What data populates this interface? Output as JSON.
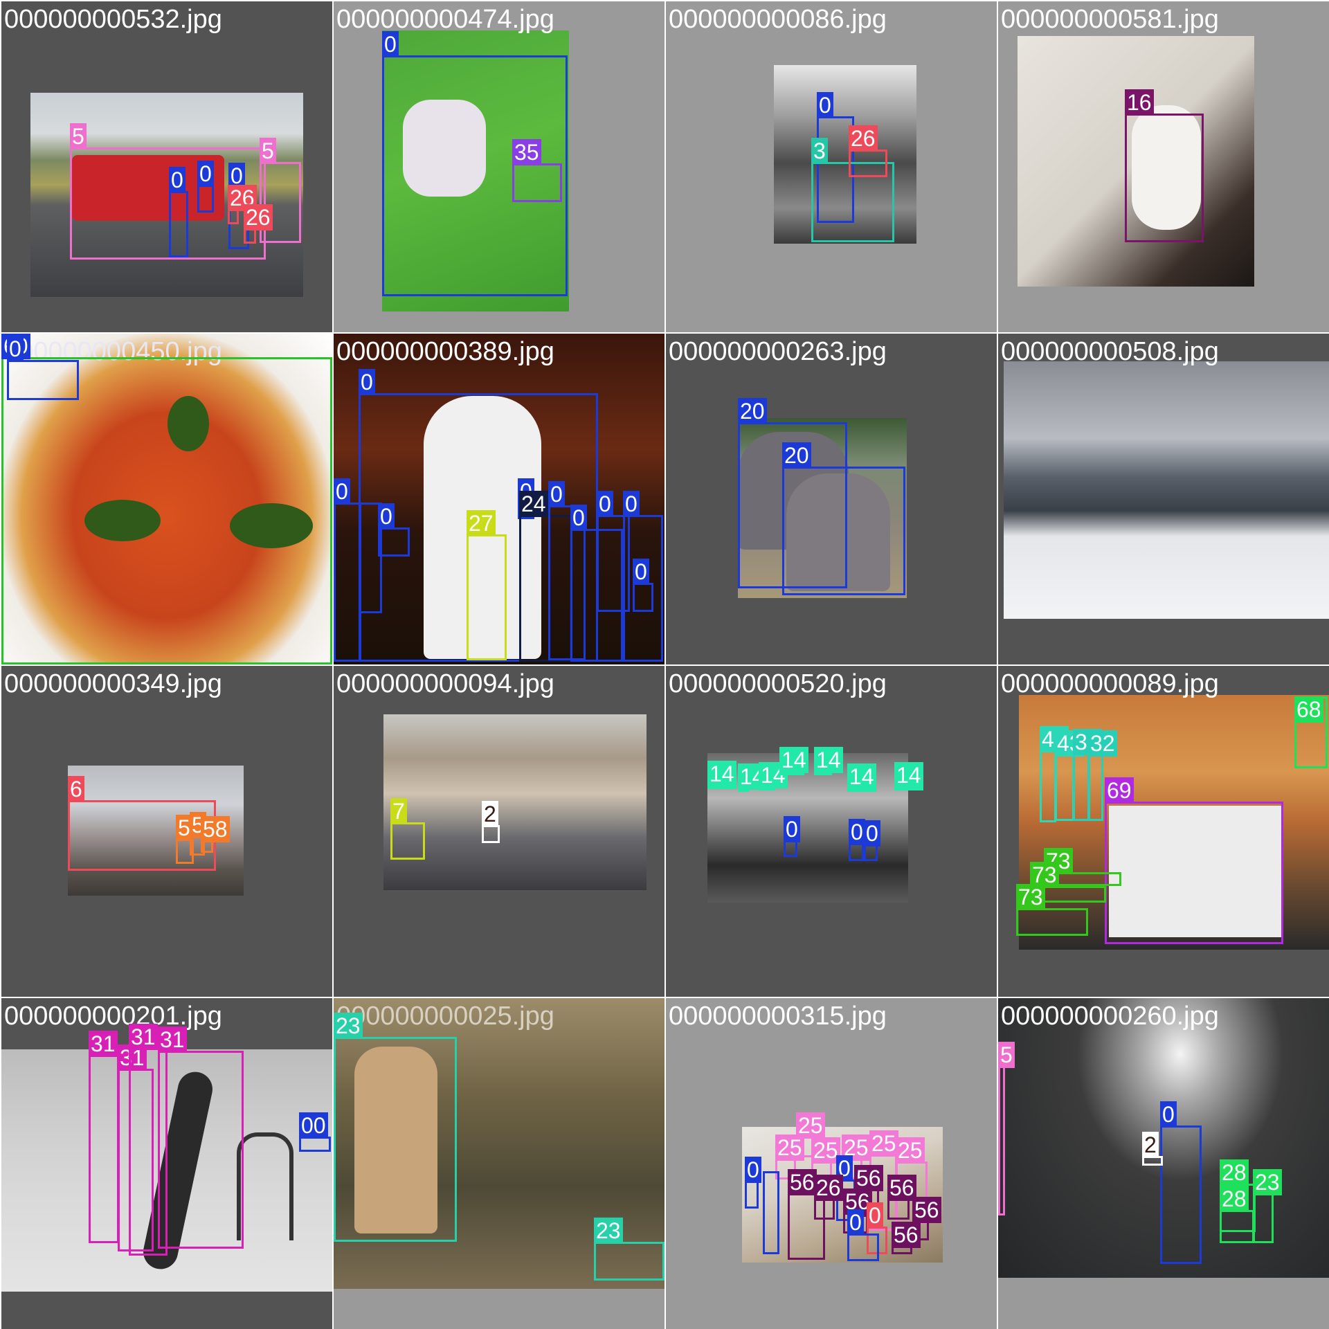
{
  "mosaic": {
    "tiles": [
      {
        "filename": "000000000532.jpg",
        "bg": "#535353",
        "labels": [
          "5",
          "5",
          "0",
          "0",
          "0",
          "26",
          "26"
        ]
      },
      {
        "filename": "000000000474.jpg",
        "bg": "#9a9a9a",
        "labels": [
          "0",
          "35"
        ]
      },
      {
        "filename": "000000000086.jpg",
        "bg": "#9a9a9a",
        "labels": [
          "0",
          "3",
          "26"
        ]
      },
      {
        "filename": "000000000581.jpg",
        "bg": "#9a9a9a",
        "labels": [
          "16"
        ]
      },
      {
        "filename": "000000000450.jpg",
        "bg": "#ffffff",
        "labels": [
          "60",
          "0"
        ]
      },
      {
        "filename": "000000000389.jpg",
        "bg": "#ffffff",
        "labels": [
          "0",
          "0",
          "0",
          "0",
          "24",
          "0",
          "0",
          "0",
          "0",
          "0",
          "27"
        ]
      },
      {
        "filename": "000000000263.jpg",
        "bg": "#535353",
        "labels": [
          "20",
          "20"
        ]
      },
      {
        "filename": "000000000508.jpg",
        "bg": "#535353",
        "labels": []
      },
      {
        "filename": "000000000349.jpg",
        "bg": "#535353",
        "labels": [
          "6",
          "5",
          "5",
          "58"
        ]
      },
      {
        "filename": "000000000094.jpg",
        "bg": "#535353",
        "labels": [
          "7",
          "2"
        ]
      },
      {
        "filename": "000000000520.jpg",
        "bg": "#535353",
        "labels": [
          "14",
          "14",
          "14",
          "14",
          "14",
          "14",
          "14",
          "0",
          "0",
          "0"
        ]
      },
      {
        "filename": "000000000089.jpg",
        "bg": "#535353",
        "labels": [
          "43",
          "43",
          "33",
          "32",
          "68",
          "69",
          "73",
          "73",
          "73"
        ]
      },
      {
        "filename": "000000000201.jpg",
        "bg": "#535353",
        "labels": [
          "31",
          "31",
          "31",
          "31",
          "00"
        ]
      },
      {
        "filename": "000000000025.jpg",
        "bg": "#9a9a9a",
        "labels": [
          "23",
          "23"
        ]
      },
      {
        "filename": "000000000315.jpg",
        "bg": "#9a9a9a",
        "labels": [
          "25",
          "25",
          "25",
          "25",
          "25",
          "25",
          "0",
          "0",
          "0",
          "56",
          "56",
          "56",
          "56",
          "56",
          "56",
          "26",
          "0"
        ]
      },
      {
        "filename": "000000000260.jpg",
        "bg": "#9a9a9a",
        "labels": [
          "5",
          "0",
          "2",
          "28",
          "28",
          "23"
        ]
      }
    ]
  },
  "colors": {
    "0": "#1c3ad8",
    "2": "#3a1a14",
    "3": "#26c7a8",
    "5": "#ef6fcf",
    "6": "#ef4a5a",
    "7": "#c8dc1a",
    "14": "#22e8a8",
    "16": "#7a1468",
    "20": "#1c3ad8",
    "23": "#26d0a8",
    "24": "#101c44",
    "25": "#f27ad6",
    "26": "#ef4a5a",
    "27": "#c8dc1a",
    "28": "#1ee05a",
    "31": "#d81fb6",
    "33": "#26d0b8",
    "35": "#8a3ee6",
    "43": "#2ad8b8",
    "56": "#6e1060",
    "58": "#f27a2a",
    "60": "#26c42a",
    "68": "#1ee05a",
    "69": "#b02ae2",
    "73": "#34c81c"
  }
}
